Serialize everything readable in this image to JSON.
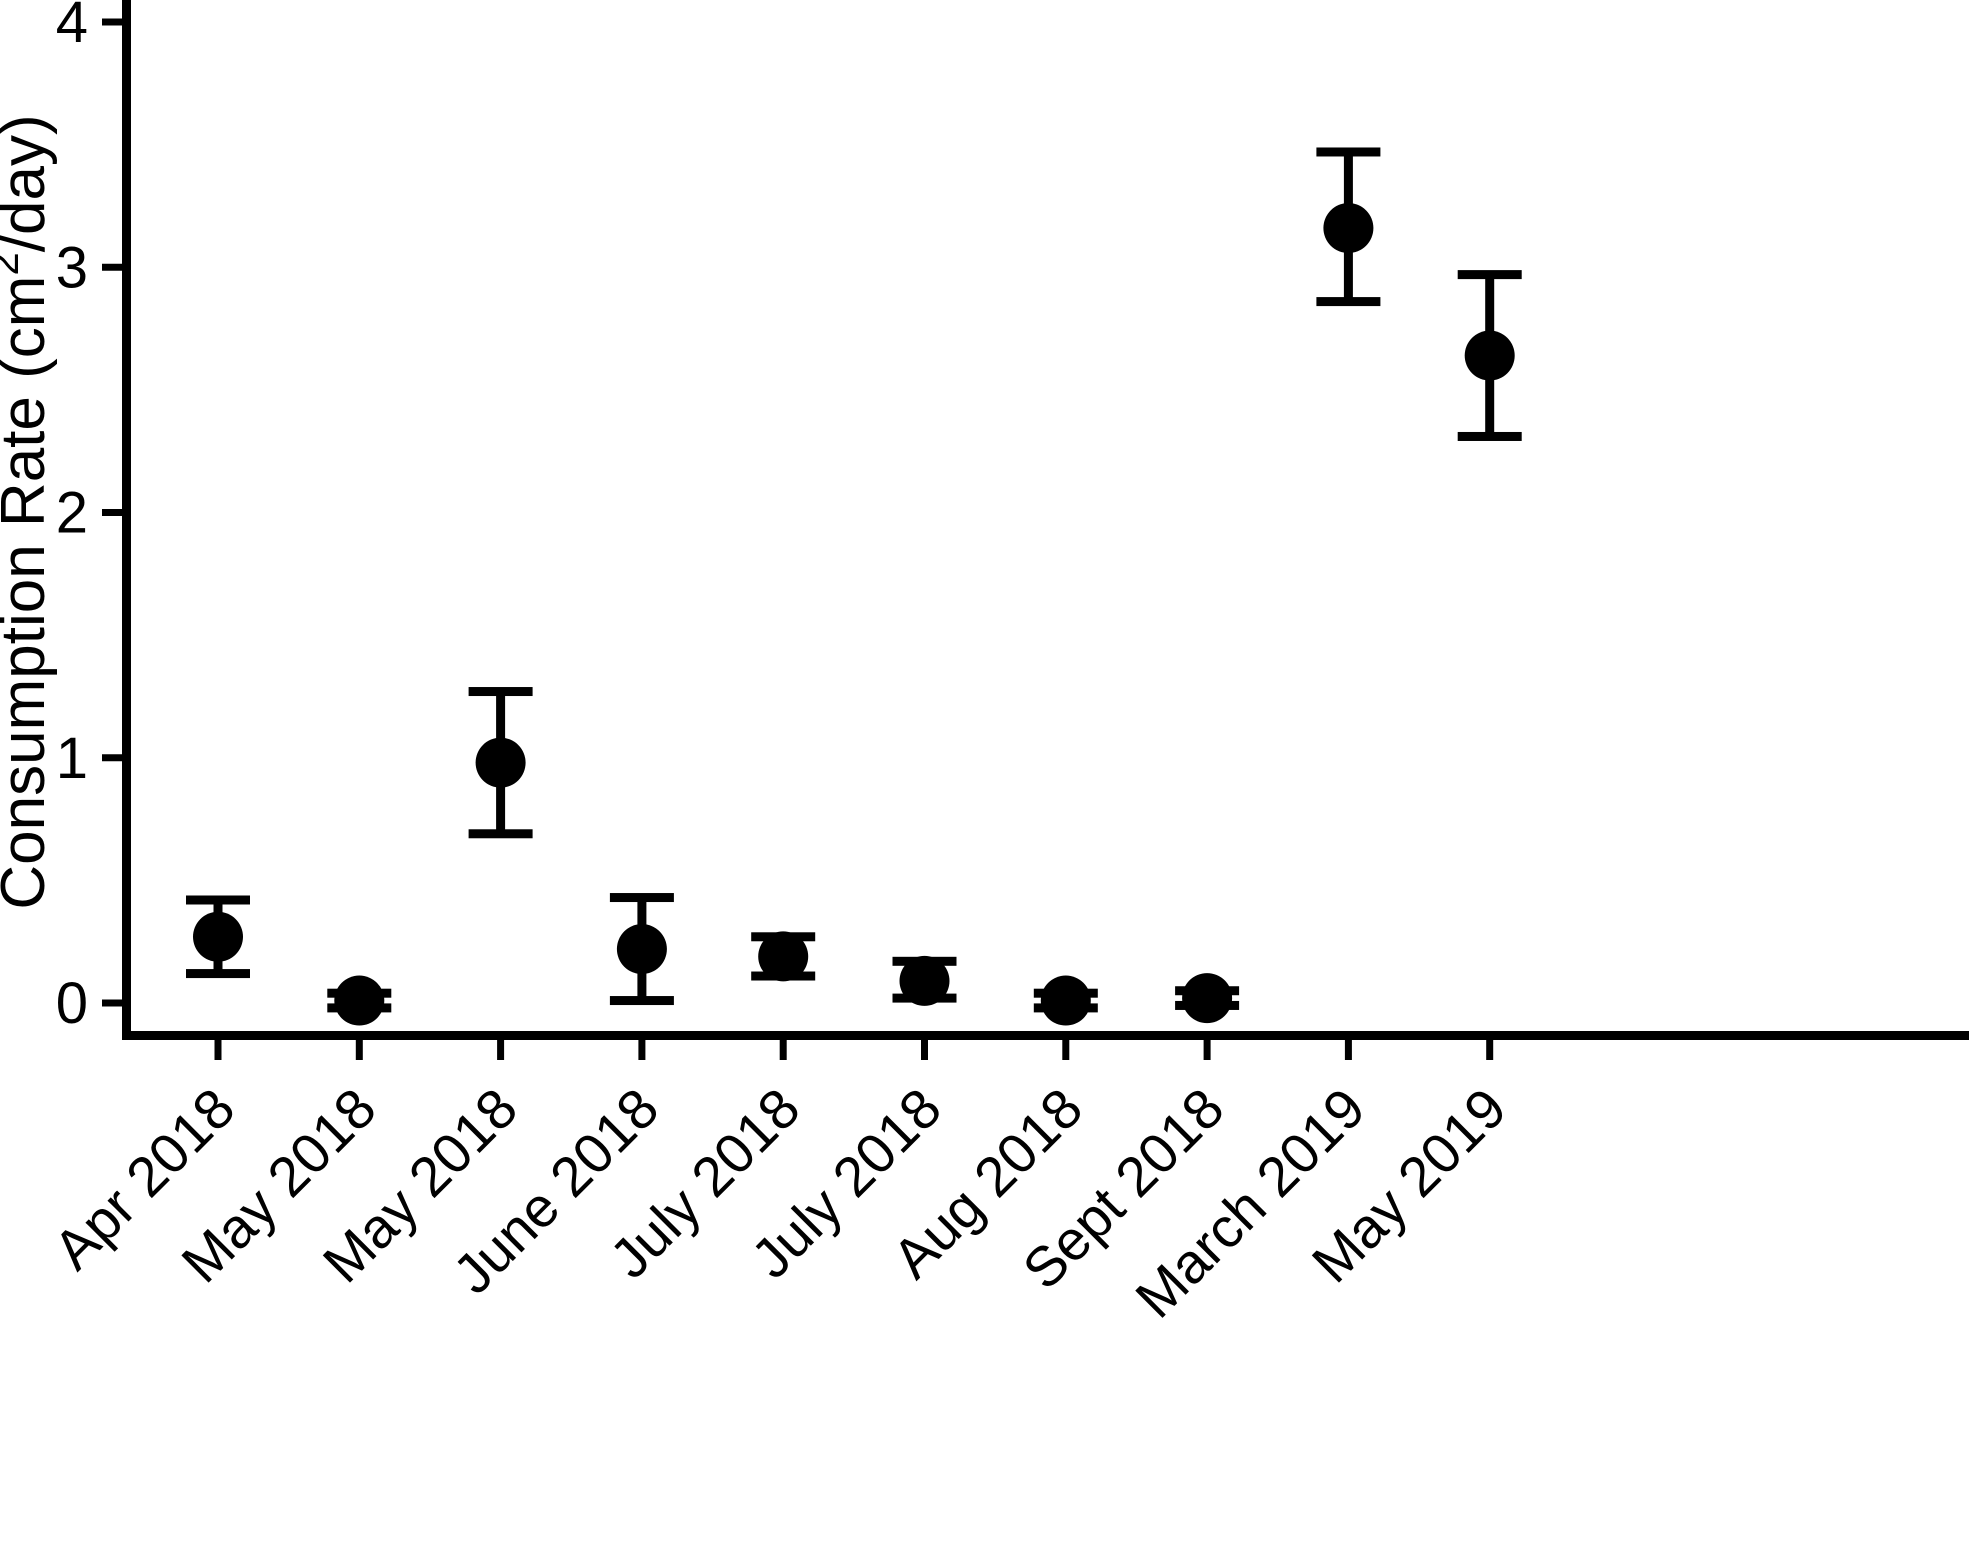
{
  "page": {
    "background": "#ffffff"
  },
  "chart_data": {
    "type": "scatter",
    "title": "",
    "xlabel": "",
    "ylabel": "Consumption Rate (cm2/day)",
    "ylabel_parts": {
      "pre": "Consumption Rate (cm",
      "sup": "2",
      "post": "/day)"
    },
    "marker_color": "#000000",
    "background_color": "#ffffff",
    "grid": false,
    "legend": "none",
    "ylim": [
      0,
      4
    ],
    "yticks": [
      0,
      1,
      2,
      3,
      4
    ],
    "error_bar_style": "mean with upper/lower caps",
    "categories": [
      "Apr 2018",
      "May 2018",
      "May 2018",
      "June 2018",
      "July 2018",
      "July 2018",
      "Aug 2018",
      "Sept 2018",
      "March 2019",
      "May 2019"
    ],
    "series": [
      {
        "name": "Consumption Rate",
        "points": [
          {
            "x": "Apr 2018",
            "mean": 0.27,
            "lo": 0.12,
            "hi": 0.42
          },
          {
            "x": "May 2018",
            "mean": 0.01,
            "lo": -0.02,
            "hi": 0.04
          },
          {
            "x": "May 2018",
            "mean": 0.98,
            "lo": 0.69,
            "hi": 1.27
          },
          {
            "x": "June 2018",
            "mean": 0.22,
            "lo": 0.01,
            "hi": 0.43
          },
          {
            "x": "July 2018",
            "mean": 0.19,
            "lo": 0.11,
            "hi": 0.27
          },
          {
            "x": "July 2018",
            "mean": 0.09,
            "lo": 0.02,
            "hi": 0.17
          },
          {
            "x": "Aug 2018",
            "mean": 0.01,
            "lo": -0.02,
            "hi": 0.04
          },
          {
            "x": "Sept 2018",
            "mean": 0.02,
            "lo": -0.01,
            "hi": 0.05
          },
          {
            "x": "March 2019",
            "mean": 3.16,
            "lo": 2.86,
            "hi": 3.47
          },
          {
            "x": "May 2019",
            "mean": 2.64,
            "lo": 2.31,
            "hi": 2.97
          }
        ]
      }
    ]
  }
}
